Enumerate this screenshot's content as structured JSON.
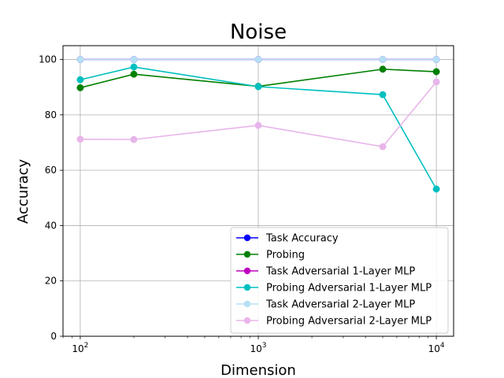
{
  "chart_data": {
    "type": "line",
    "title": "Noise",
    "xlabel": "Dimension",
    "ylabel": "Accuracy",
    "xscale": "log",
    "xlim": [
      80,
      12500
    ],
    "ylim": [
      0,
      105
    ],
    "grid": true,
    "x": [
      100,
      200,
      1000,
      5000,
      10000
    ],
    "xticks": [
      {
        "value": 100,
        "base": "10",
        "exp": "2"
      },
      {
        "value": 1000,
        "base": "10",
        "exp": "3"
      },
      {
        "value": 10000,
        "base": "10",
        "exp": "4"
      }
    ],
    "yticks": [
      0,
      20,
      40,
      60,
      80,
      100
    ],
    "legend_position": "lower-right",
    "series": [
      {
        "name": "Task Accuracy",
        "color": "#0000ff",
        "values": [
          100,
          100,
          100,
          100,
          100
        ]
      },
      {
        "name": "Probing",
        "color": "#008000",
        "values": [
          89.8,
          94.7,
          90.3,
          96.5,
          95.6
        ]
      },
      {
        "name": "Task Adversarial 1-Layer MLP",
        "color": "#bf00bf",
        "values": [
          100,
          100,
          100,
          100,
          100
        ]
      },
      {
        "name": "Probing Adversarial 1-Layer MLP",
        "color": "#00bfbf",
        "values": [
          92.7,
          97.3,
          90.2,
          87.3,
          53.2
        ]
      },
      {
        "name": "Task Adversarial 2-Layer MLP",
        "color": "#b5e0f5",
        "values": [
          100,
          100,
          100,
          100,
          100
        ]
      },
      {
        "name": "Probing Adversarial 2-Layer MLP",
        "color": "#e8b5ea",
        "values": [
          71.2,
          71.1,
          76.2,
          68.5,
          91.9
        ]
      }
    ]
  }
}
